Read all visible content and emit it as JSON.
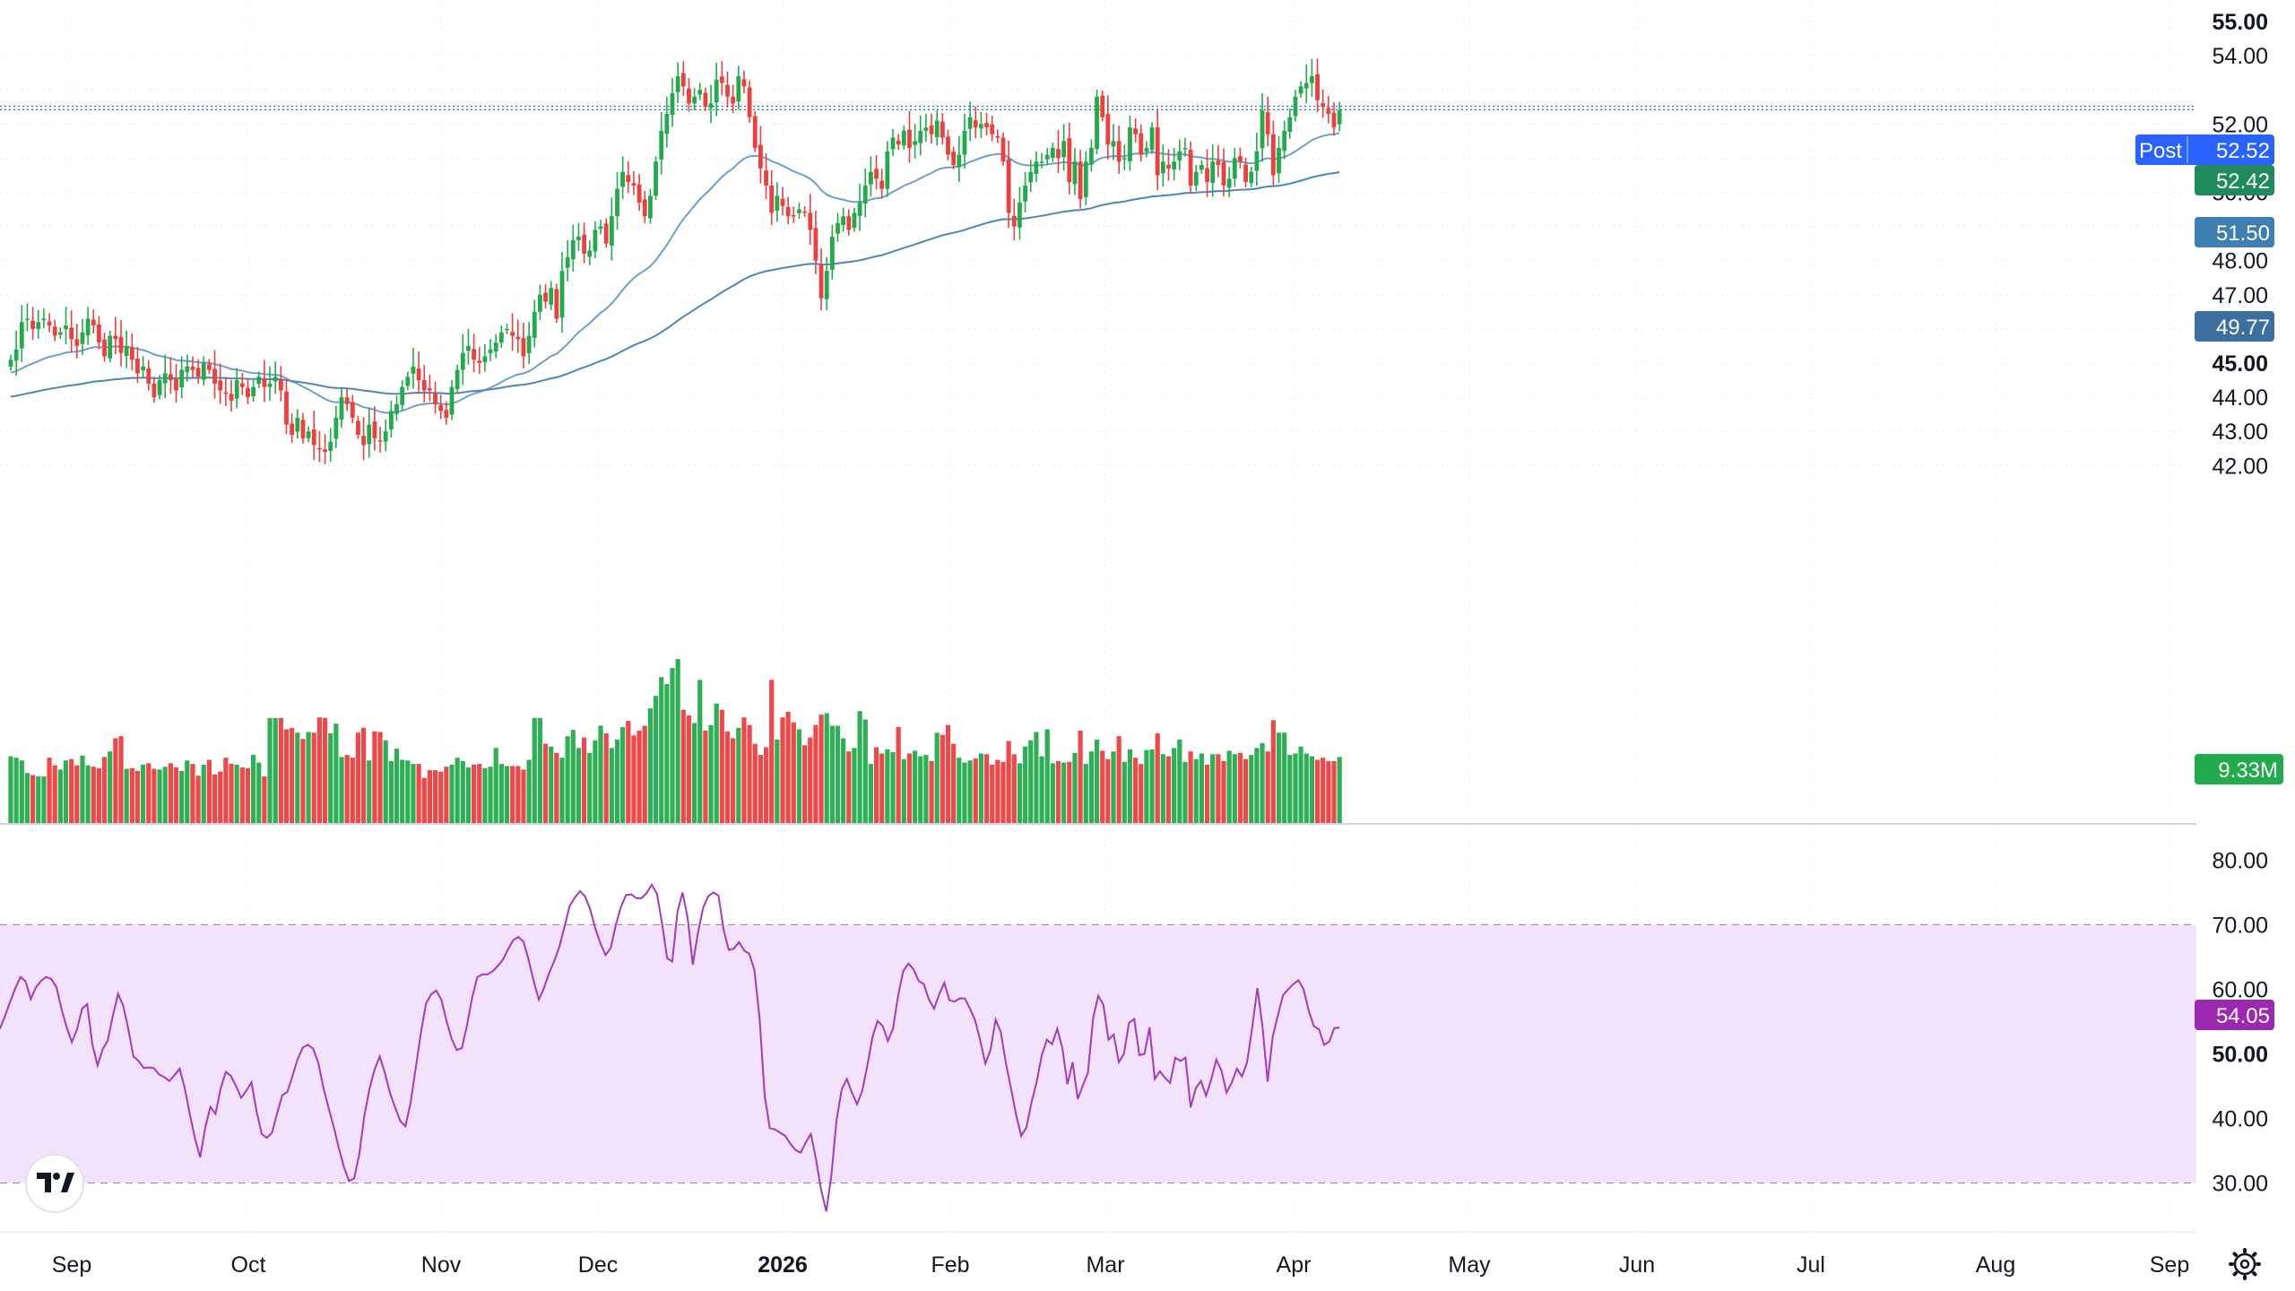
{
  "colors": {
    "up": "#22ab4c",
    "down": "#ef3e3e",
    "ma_fast": "#6e9fcb",
    "ma_slow": "#4f86b6",
    "rsi_line": "#a23bbd",
    "rsi_band": "#f2e2fb",
    "post_tag": "#2962ff",
    "last_tag": "#1f8a5c",
    "ma_fast_tag": "#3d7fb3",
    "ma_slow_tag": "#3a6fa0",
    "volume_tag": "#22ab4c",
    "rsi_tag": "#9c27b0"
  },
  "toolbar": {
    "logo_icon": "tradingview-logo-icon",
    "settings_icon": "gear-icon"
  },
  "chart_data": [
    {
      "type": "candlestick",
      "title": "",
      "price_axis_ticks": [
        "55.00",
        "54.00",
        "52.00",
        "51.00",
        "50.00",
        "49.00",
        "48.00",
        "47.00",
        "46.00",
        "45.00",
        "44.00",
        "43.00",
        "42.00"
      ],
      "price_axis_bold": [
        "55.00",
        "45.00"
      ],
      "ylim": [
        41.4,
        55.6
      ],
      "x_ticks": [
        "Sep",
        "Oct",
        "Nov",
        "Dec",
        "2026",
        "Feb",
        "Mar",
        "Apr",
        "May",
        "Jun",
        "Jul",
        "Aug",
        "Sep"
      ],
      "x_ticks_bold": [
        "2026"
      ],
      "tags": {
        "post_label": "Post",
        "post_value": "52.52",
        "last_price": "52.42",
        "ma_fast": "51.50",
        "ma_slow": "49.77",
        "volume": "9.33M"
      },
      "closes": [
        45.1,
        45.4,
        46.2,
        46.3,
        46.0,
        46.2,
        46.3,
        46.1,
        45.8,
        45.9,
        46.1,
        45.7,
        45.5,
        45.9,
        46.3,
        46.1,
        45.6,
        45.2,
        45.8,
        45.7,
        45.3,
        45.5,
        45.1,
        44.7,
        44.9,
        44.4,
        44.0,
        44.5,
        44.7,
        44.5,
        44.2,
        44.8,
        44.9,
        44.8,
        44.6,
        45.0,
        44.8,
        44.4,
        44.2,
        44.1,
        43.9,
        44.5,
        44.3,
        44.0,
        44.3,
        44.6,
        44.3,
        44.4,
        44.6,
        44.2,
        43.2,
        42.9,
        43.4,
        42.8,
        43.0,
        42.6,
        42.5,
        42.4,
        42.7,
        43.4,
        44.0,
        43.8,
        43.4,
        42.9,
        42.6,
        43.2,
        42.8,
        42.7,
        43.0,
        43.6,
        43.8,
        44.3,
        44.6,
        44.9,
        44.5,
        44.2,
        44.2,
        43.8,
        43.6,
        43.4,
        44.3,
        44.8,
        45.3,
        45.5,
        45.1,
        45.0,
        45.2,
        45.4,
        45.6,
        45.9,
        46.0,
        45.8,
        45.7,
        45.2,
        45.8,
        46.5,
        47.0,
        46.8,
        47.2,
        46.3,
        47.7,
        48.1,
        48.6,
        48.7,
        48.2,
        48.3,
        48.9,
        49.0,
        48.5,
        49.3,
        50.1,
        50.6,
        50.3,
        50.2,
        49.7,
        49.3,
        49.9,
        50.9,
        51.8,
        52.3,
        52.9,
        53.4,
        53.1,
        52.6,
        52.8,
        53.0,
        52.5,
        52.6,
        53.3,
        53.2,
        52.8,
        52.6,
        53.4,
        53.1,
        52.2,
        51.3,
        50.7,
        50.2,
        49.4,
        49.9,
        49.6,
        49.3,
        49.3,
        49.5,
        49.4,
        48.9,
        48.0,
        46.9,
        47.7,
        48.7,
        49.1,
        49.3,
        48.9,
        49.4,
        49.7,
        50.2,
        50.6,
        50.4,
        50.1,
        51.2,
        51.6,
        51.4,
        51.8,
        51.3,
        51.5,
        51.8,
        51.9,
        51.7,
        52.1,
        51.6,
        51.1,
        50.8,
        51.1,
        51.8,
        52.2,
        51.9,
        52.0,
        51.9,
        51.7,
        51.6,
        50.9,
        49.4,
        49.0,
        49.7,
        50.2,
        50.6,
        50.9,
        50.9,
        51.1,
        51.3,
        51.0,
        51.5,
        50.3,
        50.9,
        49.8,
        50.9,
        51.3,
        52.8,
        52.2,
        51.4,
        51.5,
        50.9,
        51.0,
        51.9,
        51.7,
        51.1,
        51.3,
        51.9,
        50.5,
        50.9,
        50.7,
        50.9,
        51.2,
        51.3,
        50.2,
        50.6,
        50.8,
        50.3,
        50.9,
        50.8,
        50.2,
        50.4,
        51.0,
        50.9,
        50.3,
        50.6,
        51.2,
        52.4,
        51.7,
        50.5,
        51.3,
        51.8,
        52.2,
        52.8,
        53.1,
        53.2,
        53.4,
        52.7,
        52.5,
        52.3,
        51.9,
        52.4
      ],
      "volume": [
        0.96,
        0.94,
        0.9,
        0.72,
        0.69,
        0.67,
        0.67,
        0.94,
        0.83,
        0.77,
        0.9,
        0.92,
        0.83,
        0.97,
        0.83,
        0.81,
        0.79,
        0.95,
        1.03,
        1.22,
        1.25,
        0.78,
        0.79,
        0.75,
        0.84,
        0.86,
        0.78,
        0.77,
        0.81,
        0.86,
        0.8,
        0.75,
        0.9,
        0.85,
        0.68,
        0.84,
        0.91,
        0.7,
        0.74,
        0.94,
        0.85,
        0.84,
        0.8,
        0.79,
        0.98,
        0.87,
        0.67,
        1.51,
        1.51,
        1.51,
        1.35,
        1.37,
        1.3,
        1.21,
        1.31,
        1.3,
        1.52,
        1.51,
        1.29,
        1.43,
        0.95,
        0.98,
        0.94,
        1.3,
        1.37,
        0.9,
        1.32,
        1.31,
        1.19,
        0.89,
        1.07,
        0.91,
        0.9,
        0.85,
        0.85,
        0.65,
        0.76,
        0.76,
        0.74,
        0.81,
        0.84,
        0.94,
        0.89,
        0.8,
        0.84,
        0.85,
        0.79,
        0.81,
        1.08,
        0.85,
        0.82,
        0.82,
        0.82,
        0.77,
        0.91,
        1.51,
        1.51,
        1.14,
        1.1,
        1.01,
        0.94,
        1.25,
        1.34,
        1.08,
        1.23,
        1.01,
        1.19,
        1.4,
        1.29,
        1.08,
        1.2,
        1.38,
        1.47,
        1.26,
        1.33,
        1.4,
        1.65,
        1.83,
        2.1,
        2.0,
        2.23,
        2.36,
        1.63,
        1.55,
        1.44,
        2.06,
        1.33,
        1.41,
        1.72,
        1.63,
        1.32,
        1.22,
        1.37,
        1.52,
        1.41,
        1.14,
        0.98,
        1.09,
        2.06,
        1.2,
        1.52,
        1.6,
        1.45,
        1.35,
        1.12,
        1.23,
        1.41,
        1.56,
        1.58,
        1.4,
        1.4,
        1.22,
        1.03,
        1.08,
        1.61,
        1.49,
        0.85,
        1.09,
        1.0,
        1.06,
        1.02,
        1.38,
        0.92,
        1.0,
        1.04,
        0.96,
        0.98,
        0.89,
        1.3,
        1.27,
        1.41,
        1.14,
        0.94,
        0.87,
        0.9,
        0.93,
        1.0,
        0.99,
        0.84,
        0.91,
        0.88,
        1.18,
        0.99,
        0.86,
        1.1,
        1.19,
        1.31,
        0.96,
        1.35,
        0.86,
        0.89,
        0.87,
        0.88,
        1.01,
        1.33,
        0.85,
        1.03,
        1.2,
        1.04,
        0.92,
        1.03,
        1.25,
        0.88,
        1.06,
        0.94,
        0.85,
        1.05,
        1.06,
        1.29,
        0.99,
        0.96,
        1.08,
        1.2,
        0.88,
        1.03,
        0.92,
        1.0,
        0.84,
        0.99,
        0.99,
        0.89,
        1.04,
        0.99,
        1.01,
        0.92,
        0.98,
        1.08,
        1.15,
        1.03,
        1.48,
        1.3,
        1.3,
        0.98,
        1.0,
        1.1,
        1.0,
        0.96,
        0.91,
        0.94,
        0.89,
        0.89,
        0.95,
        0.83,
        0.89
      ],
      "volume_ylim": [
        0,
        3.0
      ]
    },
    {
      "type": "line",
      "title": "",
      "ylim": [
        23,
        82
      ],
      "ticks": [
        "80.00",
        "70.00",
        "60.00",
        "50.00",
        "40.00",
        "30.00"
      ],
      "ticks_bold": [
        "50.00"
      ],
      "band": [
        30,
        70
      ],
      "rsi_tag": "54.05",
      "values": [
        53.9,
        55.9,
        58.1,
        60.2,
        61.9,
        61.2,
        58.5,
        60.3,
        61.3,
        61.9,
        61.6,
        60.3,
        56.9,
        54.1,
        51.8,
        53.8,
        57.0,
        57.7,
        51.5,
        48.2,
        50.7,
        52.1,
        55.9,
        59.3,
        57.5,
        53.9,
        49.6,
        48.9,
        47.8,
        47.9,
        47.8,
        46.8,
        46.4,
        45.8,
        46.7,
        47.7,
        44.7,
        40.6,
        36.9,
        34.0,
        38.6,
        41.8,
        40.7,
        44.7,
        47.2,
        46.6,
        45.0,
        43.2,
        44.3,
        45.6,
        41.1,
        37.6,
        37.0,
        37.8,
        40.8,
        43.6,
        44.1,
        46.6,
        49.2,
        51.0,
        51.4,
        50.8,
        48.7,
        44.8,
        41.7,
        38.8,
        35.5,
        32.5,
        30.3,
        30.7,
        34.4,
        40.5,
        44.6,
        47.6,
        49.6,
        47.0,
        43.9,
        41.7,
        39.6,
        38.8,
        42.4,
        47.8,
        53.2,
        57.8,
        59.2,
        59.8,
        58.4,
        55.1,
        52.3,
        50.6,
        50.9,
        54.4,
        58.7,
        61.9,
        62.3,
        62.3,
        62.8,
        63.6,
        64.6,
        66.2,
        67.6,
        68.1,
        67.4,
        64.6,
        61.2,
        58.4,
        60.2,
        62.5,
        64.4,
        66.6,
        69.7,
        72.9,
        74.2,
        75.2,
        74.4,
        72.4,
        69.4,
        67.1,
        65.3,
        66.4,
        70.0,
        72.8,
        74.6,
        74.7,
        74.1,
        74.1,
        74.9,
        76.2,
        74.8,
        70.2,
        64.8,
        64.3,
        72.0,
        75.0,
        71.0,
        63.8,
        68.8,
        72.6,
        74.4,
        75.0,
        74.5,
        69.2,
        66.1,
        66.3,
        67.3,
        66.0,
        65.5,
        63.0,
        55.5,
        43.5,
        38.5,
        38.3,
        37.8,
        37.3,
        36.1,
        35.1,
        34.7,
        36.3,
        37.6,
        33.7,
        28.9,
        25.6,
        31.2,
        39.7,
        44.5,
        46.1,
        44.0,
        42.2,
        44.3,
        48.2,
        52.6,
        55.1,
        54.3,
        52.0,
        53.9,
        59.0,
        62.8,
        64.0,
        63.1,
        61.3,
        60.8,
        58.4,
        57.0,
        59.2,
        61.0,
        58.3,
        58.1,
        58.6,
        58.6,
        57.0,
        55.2,
        52.1,
        48.5,
        50.6,
        55.3,
        53.4,
        48.6,
        44.6,
        40.5,
        37.3,
        38.6,
        42.5,
        45.7,
        49.8,
        52.2,
        51.5,
        53.9,
        50.9,
        45.3,
        48.7,
        43.0,
        45.1,
        47.1,
        55.6,
        59.0,
        57.6,
        52.2,
        53.0,
        48.7,
        50.0,
        54.8,
        55.4,
        49.8,
        50.0,
        54.1,
        46.1,
        47.3,
        46.3,
        45.5,
        49.4,
        48.9,
        49.4,
        41.7,
        44.7,
        45.8,
        43.5,
        46.0,
        49.1,
        47.4,
        44.0,
        45.5,
        47.7,
        46.5,
        48.7,
        54.1,
        60.2,
        54.2,
        45.7,
        52.7,
        56.0,
        59.1,
        60.0,
        60.8,
        61.4,
        60.0,
        56.7,
        54.3,
        53.8,
        51.4,
        51.9,
        54.0,
        54.05
      ],
      "series": [
        {
          "values_key": "values"
        }
      ]
    }
  ]
}
